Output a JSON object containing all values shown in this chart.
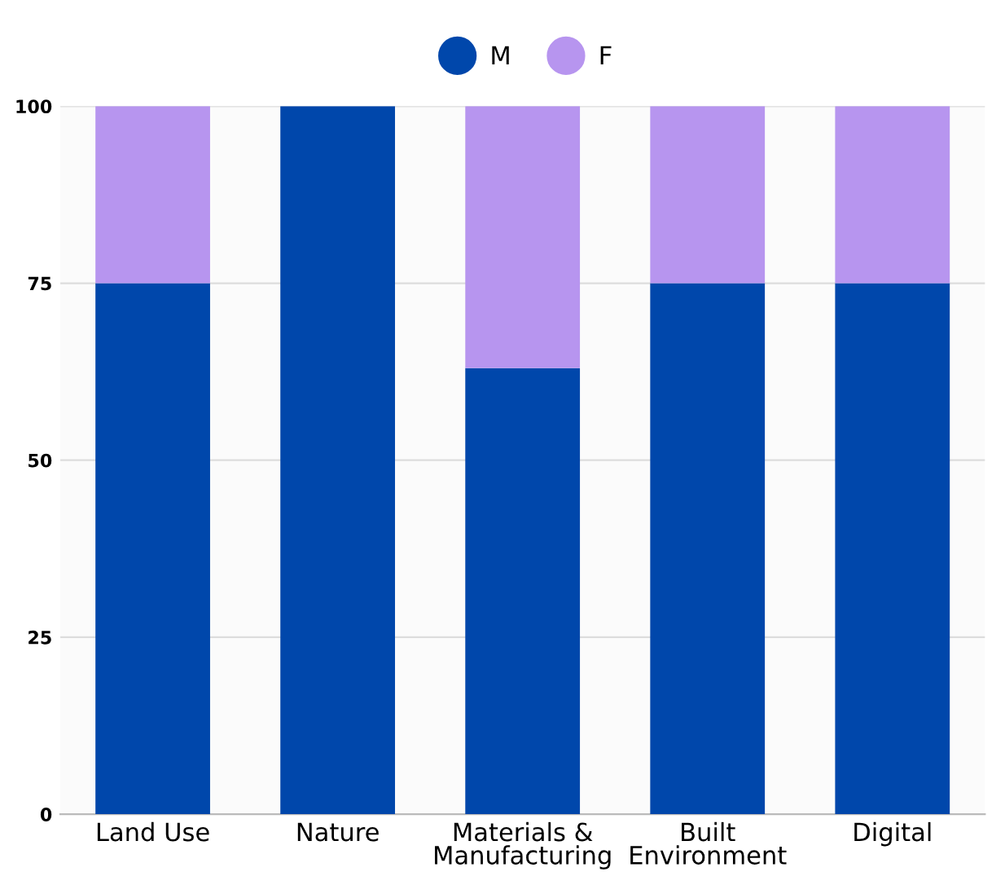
{
  "chart_data": {
    "type": "bar",
    "stacked": true,
    "categories": [
      "Land Use",
      "Nature",
      "Materials &\nManufacturing",
      "Built\nEnvironment",
      "Digital"
    ],
    "series": [
      {
        "name": "M",
        "color": "#0047ab",
        "values": [
          75,
          100,
          63,
          75,
          75
        ]
      },
      {
        "name": "F",
        "color": "#b795ef",
        "values": [
          25,
          0,
          37,
          25,
          25
        ]
      }
    ],
    "ylim": [
      0,
      100
    ],
    "yticks": [
      0,
      25,
      50,
      75,
      100
    ],
    "grid": "y",
    "legend": "top"
  }
}
